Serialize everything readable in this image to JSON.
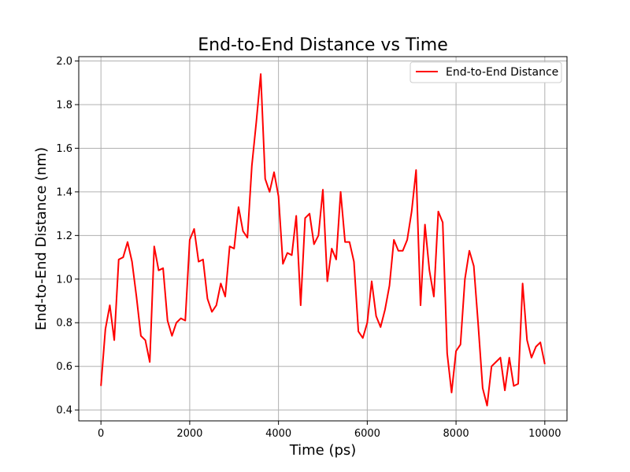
{
  "chart_data": {
    "type": "line",
    "title": "End-to-End Distance vs Time",
    "xlabel": "Time (ps)",
    "ylabel": "End-to-End Distance (nm)",
    "xlim": [
      -500,
      10500
    ],
    "ylim": [
      0.35,
      2.02
    ],
    "xticks": [
      0,
      2000,
      4000,
      6000,
      8000,
      10000
    ],
    "xtick_labels": [
      "0",
      "2000",
      "4000",
      "6000",
      "8000",
      "10000"
    ],
    "yticks": [
      0.4,
      0.6,
      0.8,
      1.0,
      1.2,
      1.4,
      1.6,
      1.8,
      2.0
    ],
    "ytick_labels": [
      "0.4",
      "0.6",
      "0.8",
      "1.0",
      "1.2",
      "1.4",
      "1.6",
      "1.8",
      "2.0"
    ],
    "grid": true,
    "legend_position": "upper right",
    "series": [
      {
        "name": "End-to-End Distance",
        "color": "#ff0000",
        "x": [
          0,
          100,
          200,
          300,
          400,
          500,
          600,
          700,
          800,
          900,
          1000,
          1100,
          1200,
          1300,
          1400,
          1500,
          1600,
          1700,
          1800,
          1900,
          2000,
          2100,
          2200,
          2300,
          2400,
          2500,
          2600,
          2700,
          2800,
          2900,
          3000,
          3100,
          3200,
          3300,
          3400,
          3500,
          3600,
          3700,
          3800,
          3900,
          4000,
          4100,
          4200,
          4300,
          4400,
          4500,
          4600,
          4700,
          4800,
          4900,
          5000,
          5100,
          5200,
          5300,
          5400,
          5500,
          5600,
          5700,
          5800,
          5900,
          6000,
          6100,
          6200,
          6300,
          6400,
          6500,
          6600,
          6700,
          6800,
          6900,
          7000,
          7100,
          7200,
          7300,
          7400,
          7500,
          7600,
          7700,
          7800,
          7900,
          8000,
          8100,
          8200,
          8300,
          8400,
          8500,
          8600,
          8700,
          8800,
          8900,
          9000,
          9100,
          9200,
          9300,
          9400,
          9500,
          9600,
          9700,
          9800,
          9900,
          10000
        ],
        "values": [
          0.51,
          0.77,
          0.88,
          0.72,
          1.09,
          1.1,
          1.17,
          1.08,
          0.92,
          0.74,
          0.72,
          0.62,
          1.15,
          1.04,
          1.05,
          0.81,
          0.74,
          0.8,
          0.82,
          0.81,
          1.18,
          1.23,
          1.08,
          1.09,
          0.91,
          0.85,
          0.88,
          0.98,
          0.92,
          1.15,
          1.14,
          1.33,
          1.22,
          1.19,
          1.52,
          1.72,
          1.94,
          1.46,
          1.4,
          1.49,
          1.38,
          1.07,
          1.12,
          1.11,
          1.29,
          0.88,
          1.28,
          1.3,
          1.16,
          1.2,
          1.41,
          0.99,
          1.14,
          1.09,
          1.4,
          1.17,
          1.17,
          1.08,
          0.76,
          0.73,
          0.8,
          0.99,
          0.83,
          0.78,
          0.86,
          0.97,
          1.18,
          1.13,
          1.13,
          1.18,
          1.31,
          1.5,
          0.88,
          1.25,
          1.04,
          0.92,
          1.31,
          1.26,
          0.66,
          0.48,
          0.67,
          0.7,
          1.0,
          1.13,
          1.06,
          0.79,
          0.5,
          0.42,
          0.6,
          0.62,
          0.64,
          0.49,
          0.64,
          0.51,
          0.52,
          0.98,
          0.72,
          0.64,
          0.69,
          0.71,
          0.61
        ]
      }
    ]
  }
}
